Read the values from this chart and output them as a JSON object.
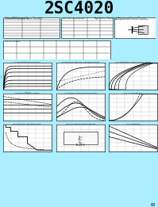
{
  "title": "2SC4020",
  "title_bg": "#00FFFF",
  "title_color": "#000000",
  "page_bg": "#AAEEFF",
  "chart_bg": "#FFFFFF",
  "grid_color": "#BBBBBB",
  "chart_titles_row1": [
    "Ic-Vce Characteristics (Typical)",
    "Forced hFE vs. Transistor Saturation Current",
    "Ic vs. Temperature Characteristics (Typical)"
  ],
  "chart_titles_row2": [
    "Ic-IB Characteristics (Typical)",
    "fT, hFE vs. IC Characteristics (Curves)",
    "hFE-IC Characteristics"
  ],
  "chart_titles_row3": [
    "Safe Operating Area (Static-Pulse)",
    "Transistor Base Self-Sustaining Indu",
    "Vce-Tj Operating"
  ]
}
